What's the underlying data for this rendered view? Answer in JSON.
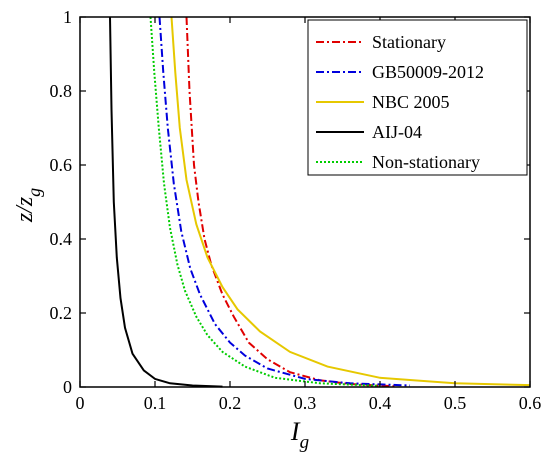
{
  "chart_data": {
    "type": "line",
    "xlabel": {
      "main": "I",
      "sub": "g"
    },
    "ylabel": {
      "main": "z/z",
      "sub": "g"
    },
    "xlim": [
      0,
      0.6
    ],
    "ylim": [
      0,
      1
    ],
    "xticks": [
      {
        "v": 0,
        "label": "0"
      },
      {
        "v": 0.1,
        "label": "0.1"
      },
      {
        "v": 0.2,
        "label": "0.2"
      },
      {
        "v": 0.3,
        "label": "0.3"
      },
      {
        "v": 0.4,
        "label": "0.4"
      },
      {
        "v": 0.5,
        "label": "0.5"
      },
      {
        "v": 0.6,
        "label": "0.6"
      }
    ],
    "yticks": [
      {
        "v": 0,
        "label": "0"
      },
      {
        "v": 0.2,
        "label": "0.2"
      },
      {
        "v": 0.4,
        "label": "0.4"
      },
      {
        "v": 0.6,
        "label": "0.6"
      },
      {
        "v": 0.8,
        "label": "0.8"
      },
      {
        "v": 1,
        "label": "1"
      }
    ],
    "grid": false,
    "legend_position": "top-right",
    "series": [
      {
        "name": "Stationary",
        "color": "#e00000",
        "dash": "dash-dot",
        "x": [
          0.142,
          0.146,
          0.152,
          0.158,
          0.166,
          0.175,
          0.19,
          0.205,
          0.225,
          0.25,
          0.28,
          0.32,
          0.36,
          0.42
        ],
        "y": [
          1.0,
          0.8,
          0.6,
          0.5,
          0.4,
          0.33,
          0.25,
          0.19,
          0.12,
          0.075,
          0.04,
          0.018,
          0.008,
          0.002
        ]
      },
      {
        "name": "GB50009-2012",
        "color": "#0000dd",
        "dash": "dash-dot",
        "x": [
          0.106,
          0.111,
          0.117,
          0.125,
          0.135,
          0.147,
          0.16,
          0.18,
          0.2,
          0.22,
          0.25,
          0.3,
          0.36,
          0.44
        ],
        "y": [
          1.0,
          0.85,
          0.7,
          0.55,
          0.42,
          0.32,
          0.25,
          0.17,
          0.12,
          0.085,
          0.05,
          0.022,
          0.01,
          0.004
        ]
      },
      {
        "name": "NBC 2005",
        "color": "#e6c800",
        "dash": "solid",
        "x": [
          0.122,
          0.127,
          0.133,
          0.142,
          0.155,
          0.17,
          0.19,
          0.21,
          0.24,
          0.28,
          0.33,
          0.4,
          0.5,
          0.6
        ],
        "y": [
          1.0,
          0.85,
          0.7,
          0.56,
          0.44,
          0.35,
          0.27,
          0.21,
          0.15,
          0.095,
          0.055,
          0.025,
          0.01,
          0.005
        ]
      },
      {
        "name": "AIJ-04",
        "color": "#000000",
        "dash": "solid",
        "x": [
          0.04,
          0.042,
          0.045,
          0.049,
          0.054,
          0.06,
          0.07,
          0.085,
          0.1,
          0.12,
          0.15,
          0.19
        ],
        "y": [
          1.0,
          0.75,
          0.5,
          0.35,
          0.24,
          0.16,
          0.09,
          0.045,
          0.022,
          0.01,
          0.004,
          0.001
        ]
      },
      {
        "name": "Non-stationary",
        "color": "#00cc00",
        "dash": "dotted",
        "x": [
          0.094,
          0.099,
          0.105,
          0.112,
          0.12,
          0.13,
          0.14,
          0.155,
          0.17,
          0.19,
          0.22,
          0.26,
          0.32,
          0.4
        ],
        "y": [
          1.0,
          0.85,
          0.7,
          0.55,
          0.43,
          0.33,
          0.26,
          0.19,
          0.14,
          0.095,
          0.055,
          0.025,
          0.01,
          0.003
        ]
      }
    ]
  }
}
